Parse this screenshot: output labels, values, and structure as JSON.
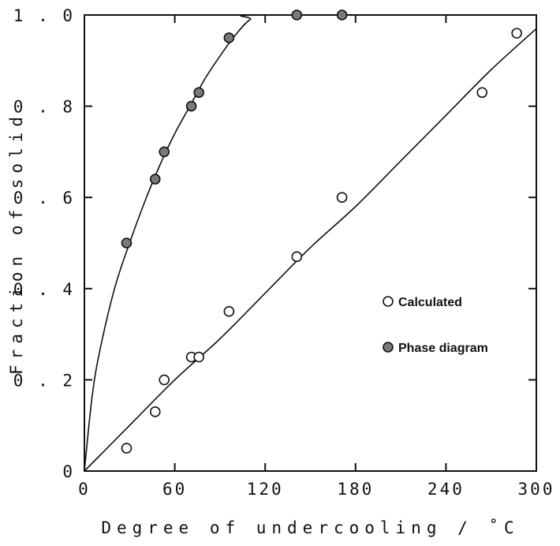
{
  "chart_data": {
    "type": "scatter",
    "xlabel": "Degree of undercooling / ˚C",
    "ylabel": "Fraction of solid",
    "xlim": [
      0,
      300
    ],
    "ylim": [
      0,
      1.0
    ],
    "xticks": [
      "0",
      "60",
      "120",
      "180",
      "240",
      "300"
    ],
    "yticks": [
      "0",
      "0.2",
      "0.4",
      "0.6",
      "0.8",
      "1.0"
    ],
    "grid": false,
    "legend_position": "center-right",
    "series": [
      {
        "name": "Calculated",
        "marker": "open-circle",
        "color": "#111111",
        "x": [
          28,
          47,
          53,
          71,
          76,
          96,
          141,
          171,
          264,
          287
        ],
        "y": [
          0.05,
          0.13,
          0.2,
          0.25,
          0.25,
          0.35,
          0.47,
          0.6,
          0.83,
          0.96
        ],
        "fit_curve": {
          "x": [
            0,
            30,
            60,
            90,
            120,
            150,
            180,
            210,
            240,
            270,
            300
          ],
          "y": [
            0,
            0.1,
            0.2,
            0.29,
            0.39,
            0.49,
            0.58,
            0.68,
            0.78,
            0.88,
            0.97
          ]
        }
      },
      {
        "name": "Phase diagram",
        "marker": "filled-circle",
        "color": "#7a7a7a",
        "x": [
          28,
          47,
          53,
          71,
          76,
          96,
          141,
          171
        ],
        "y": [
          0.5,
          0.64,
          0.7,
          0.8,
          0.83,
          0.95,
          1.0,
          1.0
        ],
        "fit_curve": {
          "x": [
            0,
            5,
            10,
            20,
            30,
            40,
            50,
            60,
            70,
            80,
            90,
            100,
            110,
            120,
            300
          ],
          "y": [
            0,
            0.16,
            0.26,
            0.4,
            0.5,
            0.59,
            0.67,
            0.74,
            0.8,
            0.86,
            0.91,
            0.955,
            0.99,
            1.0,
            1.0
          ]
        }
      }
    ]
  }
}
